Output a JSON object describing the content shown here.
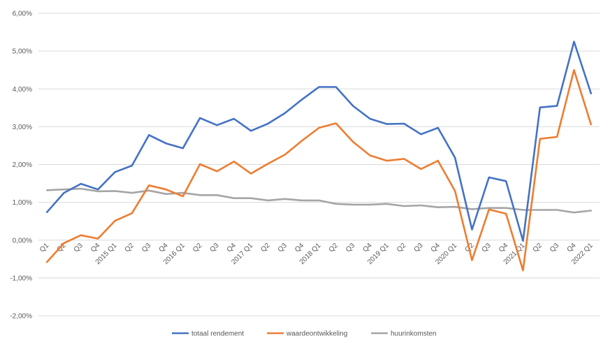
{
  "chart_data": {
    "type": "line",
    "title": "",
    "xlabel": "",
    "ylabel": "",
    "ylim": [
      -2.0,
      6.0
    ],
    "yticks": [
      "6,00%",
      "5,00%",
      "4,00%",
      "3,00%",
      "2,00%",
      "1,00%",
      "0,00%",
      "-1,00%",
      "-2,00%"
    ],
    "yticks_values": [
      6,
      5,
      4,
      3,
      2,
      1,
      0,
      -1,
      -2
    ],
    "grid": true,
    "legend_position": "bottom",
    "categories": [
      "Q1",
      "Q2",
      "Q3",
      "Q4",
      "2015 Q1",
      "Q2",
      "Q3",
      "Q4",
      "2016 Q1",
      "Q2",
      "Q3",
      "Q4",
      "2017 Q1",
      "Q2",
      "Q3",
      "Q4",
      "2018 Q1",
      "Q2",
      "Q3",
      "Q4",
      "2019 Q1",
      "Q2",
      "Q3",
      "Q4",
      "2020 Q1",
      "Q2",
      "Q3",
      "Q4",
      "2021 Q1",
      "Q2",
      "Q3",
      "Q4",
      "2022 Q1"
    ],
    "series": [
      {
        "name": "totaal rendement",
        "color": "#4472C4",
        "values": [
          0.74,
          1.25,
          1.49,
          1.34,
          1.8,
          1.97,
          2.78,
          2.56,
          2.43,
          3.23,
          3.04,
          3.21,
          2.89,
          3.08,
          3.36,
          3.72,
          4.05,
          4.05,
          3.55,
          3.21,
          3.07,
          3.08,
          2.8,
          2.97,
          2.18,
          0.28,
          1.66,
          1.56,
          -0.02,
          3.51,
          3.55,
          5.25,
          3.88
        ]
      },
      {
        "name": "waardeontwikkeling",
        "color": "#ED7D31",
        "values": [
          -0.58,
          -0.08,
          0.13,
          0.04,
          0.51,
          0.71,
          1.45,
          1.34,
          1.16,
          2.01,
          1.82,
          2.08,
          1.76,
          2.02,
          2.26,
          2.63,
          2.97,
          3.09,
          2.6,
          2.24,
          2.1,
          2.15,
          1.88,
          2.1,
          1.3,
          -0.53,
          0.81,
          0.7,
          -0.8,
          2.68,
          2.73,
          4.5,
          3.06
        ]
      },
      {
        "name": "huurinkomsten",
        "color": "#A5A5A5",
        "values": [
          1.32,
          1.34,
          1.36,
          1.29,
          1.3,
          1.25,
          1.31,
          1.22,
          1.25,
          1.19,
          1.19,
          1.11,
          1.11,
          1.05,
          1.09,
          1.05,
          1.05,
          0.96,
          0.94,
          0.94,
          0.96,
          0.9,
          0.92,
          0.87,
          0.88,
          0.82,
          0.85,
          0.85,
          0.8,
          0.8,
          0.8,
          0.73,
          0.78
        ]
      }
    ]
  }
}
